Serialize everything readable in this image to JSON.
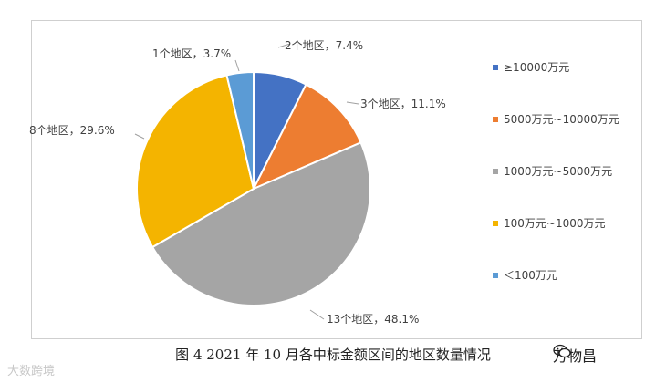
{
  "chart_data": {
    "type": "pie",
    "slices": [
      {
        "legend": "≥10000万元",
        "label": "2个地区，7.4%",
        "count": 2,
        "percent": 7.4,
        "color": "#4472C4"
      },
      {
        "legend": "5000万元~10000万元",
        "label": "3个地区，11.1%",
        "count": 3,
        "percent": 11.1,
        "color": "#ED7D31"
      },
      {
        "legend": "1000万元~5000万元",
        "label": "13个地区，48.1%",
        "count": 13,
        "percent": 48.1,
        "color": "#A5A5A5"
      },
      {
        "legend": "100万元~1000万元",
        "label": "8个地区，29.6%",
        "count": 8,
        "percent": 29.6,
        "color": "#F4B400"
      },
      {
        "legend": "＜100万元",
        "label": "1个地区，3.7%",
        "count": 1,
        "percent": 3.7,
        "color": "#5B9BD5"
      }
    ],
    "legend_position": "right"
  },
  "caption": "图 4  2021 年 10 月各中标金额区间的地区数量情况",
  "watermark_left": "大数跨境",
  "watermark_right": "万物昌"
}
